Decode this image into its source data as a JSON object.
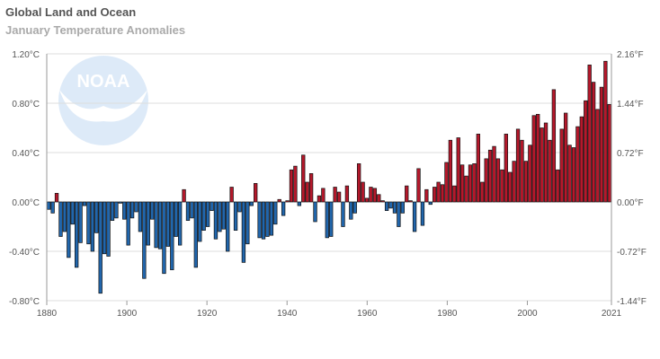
{
  "chart_data": {
    "type": "bar",
    "title": "Global Land and Ocean",
    "subtitle": "January Temperature Anomalies",
    "x_start": 1880,
    "x_end": 2021,
    "x_ticks": [
      "1880",
      "1900",
      "1920",
      "1940",
      "1960",
      "1980",
      "2000",
      "2021"
    ],
    "y_ticks_left": [
      "1.20°C",
      "0.80°C",
      "0.40°C",
      "0.00°C",
      "-0.40°C",
      "-0.80°C"
    ],
    "y_ticks_right": [
      "2.16°F",
      "1.44°F",
      "0.72°F",
      "0.00°F",
      "-0.72°F",
      "-1.44°F"
    ],
    "ylim": [
      -0.8,
      1.2
    ],
    "grid": true,
    "unit": "°C",
    "colors": {
      "positive": "#b5182b",
      "negative": "#2166ac"
    },
    "values": [
      -0.06,
      -0.09,
      0.07,
      -0.28,
      -0.24,
      -0.45,
      -0.18,
      -0.53,
      -0.33,
      -0.03,
      -0.34,
      -0.4,
      -0.25,
      -0.74,
      -0.42,
      -0.44,
      -0.15,
      -0.13,
      -0.01,
      -0.14,
      -0.35,
      -0.13,
      -0.08,
      -0.24,
      -0.62,
      -0.35,
      -0.14,
      -0.37,
      -0.38,
      -0.58,
      -0.36,
      -0.55,
      -0.28,
      -0.35,
      0.1,
      -0.15,
      -0.13,
      -0.53,
      -0.32,
      -0.23,
      -0.2,
      -0.07,
      -0.3,
      -0.24,
      -0.22,
      -0.4,
      0.12,
      -0.23,
      -0.08,
      -0.49,
      -0.34,
      -0.03,
      0.15,
      -0.29,
      -0.3,
      -0.28,
      -0.27,
      -0.18,
      0.02,
      -0.11,
      0.01,
      0.26,
      0.29,
      -0.03,
      0.38,
      0.16,
      0.23,
      -0.16,
      0.05,
      0.11,
      -0.29,
      -0.28,
      0.12,
      0.08,
      -0.2,
      0.13,
      -0.14,
      -0.09,
      0.31,
      0.16,
      0.03,
      0.12,
      0.11,
      0.06,
      0.01,
      -0.07,
      -0.05,
      -0.09,
      -0.2,
      -0.09,
      0.13,
      0.01,
      -0.24,
      0.27,
      -0.19,
      0.1,
      -0.02,
      0.12,
      0.16,
      0.14,
      0.32,
      0.5,
      0.13,
      0.52,
      0.3,
      0.21,
      0.3,
      0.31,
      0.55,
      0.16,
      0.35,
      0.42,
      0.45,
      0.35,
      0.26,
      0.55,
      0.24,
      0.33,
      0.59,
      0.5,
      0.33,
      0.46,
      0.7,
      0.71,
      0.6,
      0.64,
      0.5,
      0.91,
      0.26,
      0.59,
      0.72,
      0.46,
      0.44,
      0.61,
      0.69,
      0.82,
      1.11,
      0.97,
      0.75,
      0.93,
      1.14,
      0.79
    ]
  },
  "watermark": "NOAA"
}
